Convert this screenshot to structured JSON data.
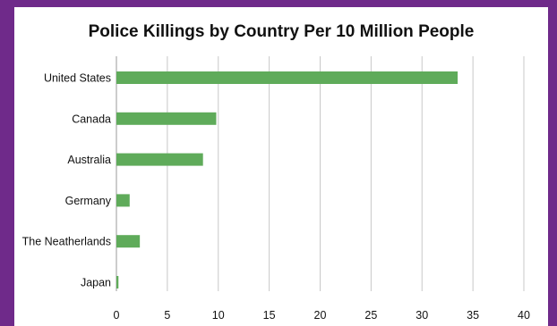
{
  "chart_data": {
    "type": "bar",
    "orientation": "horizontal",
    "title": "Police Killings by Country Per 10 Million People",
    "categories": [
      "United States",
      "Canada",
      "Australia",
      "Germany",
      "The Neatherlands",
      "Japan"
    ],
    "values": [
      33.5,
      9.8,
      8.5,
      1.3,
      2.3,
      0.2
    ],
    "xlabel": "",
    "ylabel": "",
    "xlim": [
      0,
      40
    ],
    "xticks": [
      "0",
      "5",
      "10",
      "15",
      "20",
      "25",
      "30",
      "35",
      "40"
    ],
    "grid": "vertical",
    "legend": "none",
    "colors": {
      "bar": "#5fab5a",
      "grid": "#c8c8c8",
      "frame": "#6f2a8a"
    }
  }
}
